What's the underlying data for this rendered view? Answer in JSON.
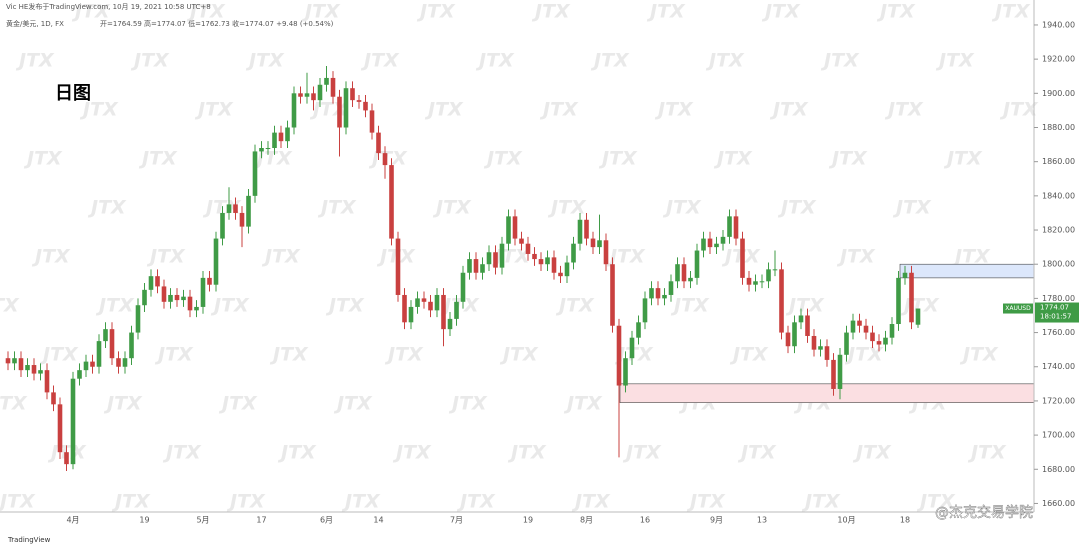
{
  "header": {
    "publisher": "Vic HE发布于TradingView.com, 10月 19, 2021 10:58 UTC+8",
    "instrument": "黄金/美元, 1D, FX",
    "ohlc": "开=1764.59 高=1774.07 低=1762.73 收=1774.07 +9.48 (+0.54%)"
  },
  "chart_data": {
    "type": "candlestick",
    "title": "日图",
    "categories": [
      null,
      null,
      null,
      null,
      null,
      null,
      null,
      null,
      null,
      null,
      "4月",
      null,
      null,
      null,
      null,
      null,
      null,
      null,
      null,
      null,
      null,
      "19",
      null,
      null,
      null,
      null,
      null,
      null,
      null,
      null,
      "5月",
      null,
      null,
      null,
      null,
      null,
      null,
      null,
      null,
      "17",
      null,
      null,
      null,
      null,
      null,
      null,
      null,
      null,
      null,
      "6月",
      null,
      null,
      null,
      null,
      null,
      null,
      null,
      "14",
      null,
      null,
      null,
      null,
      null,
      null,
      null,
      null,
      null,
      null,
      null,
      "7月",
      null,
      null,
      null,
      null,
      null,
      null,
      null,
      null,
      null,
      null,
      "19",
      null,
      null,
      null,
      null,
      null,
      null,
      null,
      null,
      "8月",
      null,
      null,
      null,
      null,
      null,
      null,
      null,
      null,
      "16",
      null,
      null,
      null,
      null,
      null,
      null,
      null,
      null,
      null,
      null,
      "9月",
      null,
      null,
      null,
      null,
      null,
      null,
      "13",
      null,
      null,
      null,
      null,
      null,
      null,
      null,
      null,
      null,
      null,
      null,
      null,
      "10月",
      null,
      null,
      null,
      null,
      null,
      null,
      null,
      null,
      "18",
      null,
      null
    ],
    "open": [
      1745,
      1742,
      1745,
      1738,
      1741,
      1736,
      1738,
      1725,
      1718,
      1690,
      1683,
      1733,
      1738,
      1743,
      1740,
      1755,
      1762,
      1745,
      1740,
      1745,
      1760,
      1776,
      1785,
      1793,
      1787,
      1778,
      1782,
      1779,
      1781,
      1773,
      1775,
      1792,
      1788,
      1815,
      1830,
      1835,
      1830,
      1822,
      1840,
      1866,
      1868,
      1868,
      1877,
      1872,
      1880,
      1900,
      1898,
      1900,
      1896,
      1905,
      1909,
      1898,
      1880,
      1903,
      1896,
      1895,
      1890,
      1877,
      1865,
      1858,
      1815,
      1782,
      1766,
      1775,
      1780,
      1778,
      1773,
      1782,
      1762,
      1768,
      1778,
      1795,
      1803,
      1795,
      1800,
      1807,
      1798,
      1812,
      1828,
      1815,
      1812,
      1806,
      1803,
      1800,
      1804,
      1795,
      1793,
      1801,
      1812,
      1826,
      1815,
      1810,
      1814,
      1800,
      1764,
      1729,
      1745,
      1757,
      1766,
      1780,
      1786,
      1780,
      1782,
      1790,
      1800,
      1790,
      1792,
      1808,
      1815,
      1810,
      1812,
      1816,
      1828,
      1815,
      1792,
      1788,
      1790,
      1790,
      1797,
      1797,
      1760,
      1752,
      1766,
      1770,
      1758,
      1750,
      1752,
      1744,
      1727,
      1747,
      1760,
      1767,
      1764,
      1760,
      1755,
      1753,
      1757,
      1765,
      1792,
      1795,
      1764.59
    ],
    "high": [
      1749,
      1749,
      1749,
      1745,
      1745,
      1742,
      1742,
      1729,
      1722,
      1694,
      1737,
      1742,
      1747,
      1747,
      1759,
      1766,
      1766,
      1749,
      1749,
      1764,
      1780,
      1789,
      1797,
      1797,
      1791,
      1786,
      1786,
      1785,
      1785,
      1779,
      1796,
      1796,
      1819,
      1834,
      1845,
      1839,
      1834,
      1844,
      1870,
      1872,
      1872,
      1881,
      1881,
      1884,
      1904,
      1904,
      1912,
      1904,
      1909,
      1916,
      1913,
      1902,
      1907,
      1907,
      1899,
      1899,
      1894,
      1881,
      1869,
      1862,
      1819,
      1786,
      1779,
      1784,
      1784,
      1782,
      1786,
      1786,
      1772,
      1782,
      1799,
      1807,
      1807,
      1804,
      1811,
      1811,
      1816,
      1832,
      1832,
      1819,
      1816,
      1810,
      1807,
      1808,
      1808,
      1799,
      1805,
      1816,
      1830,
      1830,
      1819,
      1829,
      1818,
      1804,
      1768,
      1749,
      1761,
      1770,
      1784,
      1790,
      1790,
      1786,
      1794,
      1804,
      1804,
      1796,
      1812,
      1819,
      1819,
      1816,
      1820,
      1832,
      1832,
      1819,
      1796,
      1794,
      1794,
      1801,
      1808,
      1801,
      1764,
      1770,
      1774,
      1774,
      1762,
      1756,
      1756,
      1748,
      1751,
      1764,
      1771,
      1771,
      1768,
      1764,
      1759,
      1761,
      1769,
      1796,
      1799,
      1799,
      1774.07
    ],
    "low": [
      1738,
      1738,
      1734,
      1734,
      1732,
      1732,
      1721,
      1714,
      1686,
      1679,
      1680,
      1729,
      1734,
      1736,
      1736,
      1751,
      1741,
      1736,
      1736,
      1741,
      1756,
      1772,
      1781,
      1783,
      1774,
      1774,
      1775,
      1775,
      1769,
      1769,
      1771,
      1784,
      1784,
      1811,
      1826,
      1826,
      1810,
      1818,
      1836,
      1862,
      1864,
      1864,
      1868,
      1868,
      1876,
      1894,
      1894,
      1890,
      1892,
      1901,
      1894,
      1863,
      1876,
      1892,
      1891,
      1886,
      1873,
      1861,
      1850,
      1811,
      1778,
      1762,
      1762,
      1771,
      1774,
      1769,
      1769,
      1752,
      1758,
      1764,
      1774,
      1791,
      1791,
      1791,
      1796,
      1794,
      1794,
      1808,
      1811,
      1808,
      1802,
      1799,
      1796,
      1796,
      1791,
      1789,
      1789,
      1797,
      1808,
      1811,
      1806,
      1806,
      1796,
      1760,
      1687,
      1725,
      1741,
      1753,
      1762,
      1776,
      1776,
      1776,
      1778,
      1786,
      1786,
      1786,
      1788,
      1804,
      1806,
      1806,
      1808,
      1812,
      1811,
      1788,
      1784,
      1784,
      1786,
      1786,
      1793,
      1756,
      1748,
      1748,
      1762,
      1754,
      1746,
      1746,
      1740,
      1723,
      1721,
      1743,
      1756,
      1760,
      1756,
      1751,
      1749,
      1749,
      1753,
      1761,
      1788,
      1762,
      1762.73
    ],
    "close": [
      1742,
      1745,
      1738,
      1741,
      1736,
      1738,
      1725,
      1718,
      1690,
      1683,
      1733,
      1738,
      1743,
      1740,
      1755,
      1762,
      1745,
      1740,
      1745,
      1760,
      1776,
      1785,
      1793,
      1787,
      1778,
      1782,
      1779,
      1781,
      1773,
      1775,
      1792,
      1788,
      1815,
      1830,
      1835,
      1830,
      1822,
      1840,
      1866,
      1868,
      1868,
      1877,
      1872,
      1880,
      1900,
      1898,
      1900,
      1896,
      1905,
      1909,
      1898,
      1880,
      1903,
      1896,
      1895,
      1890,
      1877,
      1865,
      1858,
      1815,
      1782,
      1766,
      1775,
      1780,
      1778,
      1773,
      1782,
      1762,
      1768,
      1778,
      1795,
      1803,
      1795,
      1800,
      1807,
      1798,
      1812,
      1828,
      1815,
      1812,
      1806,
      1803,
      1800,
      1804,
      1795,
      1793,
      1801,
      1812,
      1826,
      1815,
      1810,
      1814,
      1800,
      1764,
      1729,
      1745,
      1757,
      1766,
      1780,
      1786,
      1780,
      1782,
      1790,
      1800,
      1790,
      1792,
      1808,
      1815,
      1810,
      1812,
      1816,
      1828,
      1815,
      1792,
      1788,
      1790,
      1790,
      1797,
      1797,
      1760,
      1752,
      1766,
      1770,
      1758,
      1750,
      1752,
      1744,
      1727,
      1747,
      1760,
      1767,
      1764,
      1760,
      1755,
      1753,
      1757,
      1765,
      1792,
      1795,
      1766,
      1774.07
    ],
    "up_color": "#3f9b46",
    "down_color": "#c9403f",
    "ylim": [
      1655,
      1947
    ],
    "yticks": [
      {
        "value": 1660,
        "label": "1660.00"
      },
      {
        "value": 1680,
        "label": "1680.00"
      },
      {
        "value": 1700,
        "label": "1700.00"
      },
      {
        "value": 1720,
        "label": "1720.00"
      },
      {
        "value": 1740,
        "label": "1740.00"
      },
      {
        "value": 1760,
        "label": "1760.00"
      },
      {
        "value": 1780,
        "label": "1780.00"
      },
      {
        "value": 1800,
        "label": "1800.00"
      },
      {
        "value": 1820,
        "label": "1820.00"
      },
      {
        "value": 1840,
        "label": "1840.00"
      },
      {
        "value": 1860,
        "label": "1860.00"
      },
      {
        "value": 1880,
        "label": "1880.00"
      },
      {
        "value": 1900,
        "label": "1900.00"
      },
      {
        "value": 1920,
        "label": "1920.00"
      },
      {
        "value": 1940,
        "label": "1940.00"
      }
    ],
    "zones": [
      {
        "low": 1792,
        "high": 1800,
        "color": "#dce7fb"
      },
      {
        "low": 1719,
        "high": 1730,
        "color": "#fbdfe2"
      }
    ],
    "symbol_label": "XAUUSD",
    "price_label": "1774.07",
    "countdown": "18:01:57"
  },
  "watermark": "JTX",
  "branding": "TradingView",
  "credit": "@杰克交易学院"
}
